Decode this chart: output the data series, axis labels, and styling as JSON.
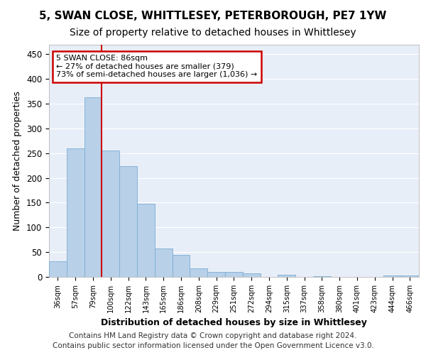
{
  "title": "5, SWAN CLOSE, WHITTLESEY, PETERBOROUGH, PE7 1YW",
  "subtitle": "Size of property relative to detached houses in Whittlesey",
  "xlabel": "Distribution of detached houses by size in Whittlesey",
  "ylabel": "Number of detached properties",
  "categories": [
    "36sqm",
    "57sqm",
    "79sqm",
    "100sqm",
    "122sqm",
    "143sqm",
    "165sqm",
    "186sqm",
    "208sqm",
    "229sqm",
    "251sqm",
    "272sqm",
    "294sqm",
    "315sqm",
    "337sqm",
    "358sqm",
    "380sqm",
    "401sqm",
    "423sqm",
    "444sqm",
    "466sqm"
  ],
  "values": [
    32,
    260,
    363,
    256,
    224,
    148,
    57,
    44,
    17,
    10,
    10,
    7,
    0,
    5,
    0,
    2,
    0,
    0,
    0,
    3,
    3
  ],
  "bar_color": "#b8d0e8",
  "bar_edge_color": "#7aaed4",
  "background_color": "#e8eef8",
  "grid_color": "#ffffff",
  "vline_x": 2.5,
  "vline_color": "#cc0000",
  "annotation_text": "5 SWAN CLOSE: 86sqm\n← 27% of detached houses are smaller (379)\n73% of semi-detached houses are larger (1,036) →",
  "annotation_box_color": "#cc0000",
  "ylim": [
    0,
    470
  ],
  "yticks": [
    0,
    50,
    100,
    150,
    200,
    250,
    300,
    350,
    400,
    450
  ],
  "footer_line1": "Contains HM Land Registry data © Crown copyright and database right 2024.",
  "footer_line2": "Contains public sector information licensed under the Open Government Licence v3.0.",
  "title_fontsize": 11,
  "subtitle_fontsize": 10,
  "xlabel_fontsize": 9,
  "ylabel_fontsize": 9,
  "footer_fontsize": 7.5
}
